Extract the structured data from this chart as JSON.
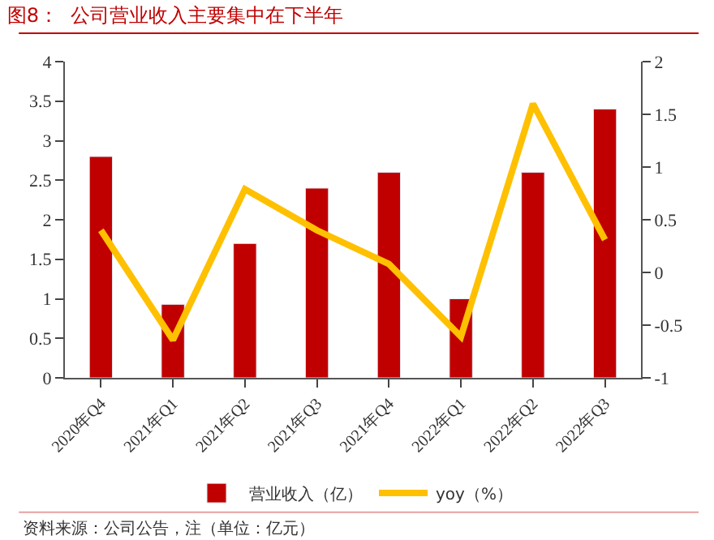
{
  "chart_data": {
    "type": "bar",
    "title": "图8：  公司营业收入主要集中在下半年",
    "categories": [
      "2020年Q4",
      "2021年Q1",
      "2021年Q2",
      "2021年Q3",
      "2021年Q4",
      "2022年Q1",
      "2022年Q2",
      "2022年Q3"
    ],
    "series": [
      {
        "name": "营业收入（亿）",
        "color": "#c00000",
        "values": [
          2.8,
          0.93,
          1.7,
          2.4,
          2.6,
          1.0,
          2.6,
          3.4
        ]
      },
      {
        "name": "yoy（%）",
        "type": "line",
        "axis": "y2",
        "color": "#ffc000",
        "values": [
          0.4,
          -0.64,
          0.79,
          0.4,
          0.08,
          -0.61,
          1.6,
          0.31
        ]
      }
    ],
    "ylim": [
      0,
      4
    ],
    "yticks": [
      0,
      0.5,
      1,
      1.5,
      2,
      2.5,
      3,
      3.5,
      4
    ],
    "y2lim": [
      -1,
      2
    ],
    "y2ticks": [
      -1,
      -0.5,
      0,
      0.5,
      1,
      1.5,
      2
    ],
    "legend": "bottom",
    "marker": "none",
    "line_style": "solid",
    "annotations": [
      "资料来源：公司公告，注（单位：亿元）"
    ]
  }
}
